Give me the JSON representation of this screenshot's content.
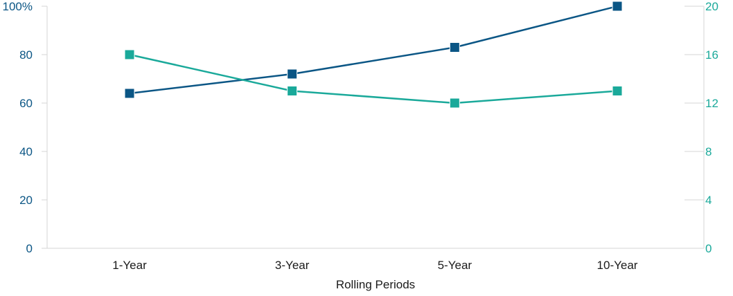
{
  "chart_data": {
    "type": "line",
    "categories": [
      "1-Year",
      "3-Year",
      "5-Year",
      "10-Year"
    ],
    "xlabel": "Rolling Periods",
    "y_left": {
      "ticks": [
        "0",
        "20",
        "40",
        "60",
        "80",
        "100%"
      ],
      "tick_values": [
        0,
        20,
        40,
        60,
        80,
        100
      ],
      "ylim": [
        0,
        100
      ],
      "color": "#0b5685"
    },
    "y_right": {
      "ticks": [
        "0",
        "4",
        "8",
        "12",
        "16",
        "20"
      ],
      "tick_values": [
        0,
        4,
        8,
        12,
        16,
        20
      ],
      "ylim": [
        0,
        20
      ],
      "color": "#1aa99a"
    },
    "series": [
      {
        "axis": "left",
        "color": "#0b5685",
        "values": [
          64,
          72,
          83,
          100
        ]
      },
      {
        "axis": "right",
        "color": "#1aa99a",
        "values": [
          16,
          13,
          12,
          13
        ]
      }
    ],
    "grid": false,
    "legend": "none",
    "axis_line_color": "#d6d6d6",
    "text_color": "#1a1a1a"
  }
}
